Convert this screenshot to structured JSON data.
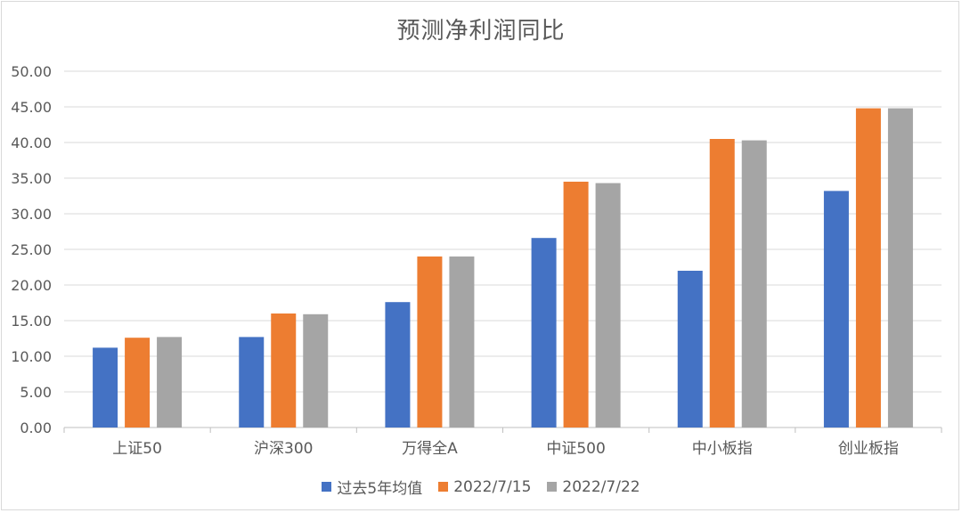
{
  "chart_data": {
    "type": "bar",
    "title": "预测净利润同比",
    "categories": [
      "上证50",
      "沪深300",
      "万得全A",
      "中证500",
      "中小板指",
      "创业板指"
    ],
    "series": [
      {
        "name": "过去5年均值",
        "color": "#4472c4",
        "values": [
          11.2,
          12.7,
          17.6,
          26.6,
          22.0,
          33.2
        ]
      },
      {
        "name": "2022/7/15",
        "color": "#ed7d31",
        "values": [
          12.6,
          16.0,
          24.0,
          34.5,
          40.5,
          44.8
        ]
      },
      {
        "name": "2022/7/22",
        "color": "#a5a5a5",
        "values": [
          12.7,
          15.9,
          24.0,
          34.3,
          40.3,
          44.8
        ]
      }
    ],
    "ylim": [
      0,
      50
    ],
    "yticks": [
      "0.00",
      "5.00",
      "10.00",
      "15.00",
      "20.00",
      "25.00",
      "30.00",
      "35.00",
      "40.00",
      "45.00",
      "50.00"
    ],
    "grid": true,
    "legend_position": "bottom"
  }
}
